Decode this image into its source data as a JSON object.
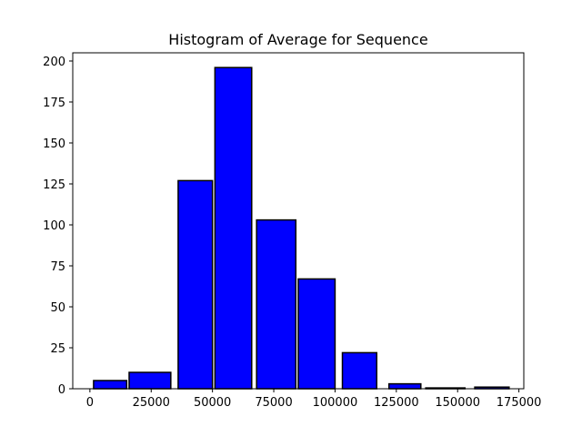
{
  "chart_data": {
    "type": "bar",
    "title": "Histogram of Average for Sequence",
    "xlabel": "",
    "ylabel": "",
    "bins": [
      {
        "x0": 1500,
        "x1": 15000,
        "value": 5
      },
      {
        "x0": 16000,
        "x1": 33000,
        "value": 10
      },
      {
        "x0": 36000,
        "x1": 50000,
        "value": 127
      },
      {
        "x0": 51000,
        "x1": 66000,
        "value": 196
      },
      {
        "x0": 68000,
        "x1": 84000,
        "value": 103
      },
      {
        "x0": 85000,
        "x1": 100000,
        "value": 67
      },
      {
        "x0": 103000,
        "x1": 117000,
        "value": 22
      },
      {
        "x0": 122000,
        "x1": 135000,
        "value": 3
      },
      {
        "x0": 137000,
        "x1": 153000,
        "value": 0.5
      },
      {
        "x0": 157000,
        "x1": 171000,
        "value": 1
      }
    ],
    "xlim": [
      -7000,
      177000
    ],
    "ylim": [
      0,
      205
    ],
    "xticks": [
      0,
      25000,
      50000,
      75000,
      100000,
      125000,
      150000,
      175000
    ],
    "xtick_labels": [
      "0",
      "25000",
      "50000",
      "75000",
      "100000",
      "125000",
      "150000",
      "175000"
    ],
    "yticks": [
      0,
      25,
      50,
      75,
      100,
      125,
      150,
      175,
      200
    ],
    "ytick_labels": [
      "0",
      "25",
      "50",
      "75",
      "100",
      "125",
      "150",
      "175",
      "200"
    ],
    "bar_color": "#0000ff",
    "edge_color": "#000000",
    "grid": false,
    "legend": "none"
  }
}
